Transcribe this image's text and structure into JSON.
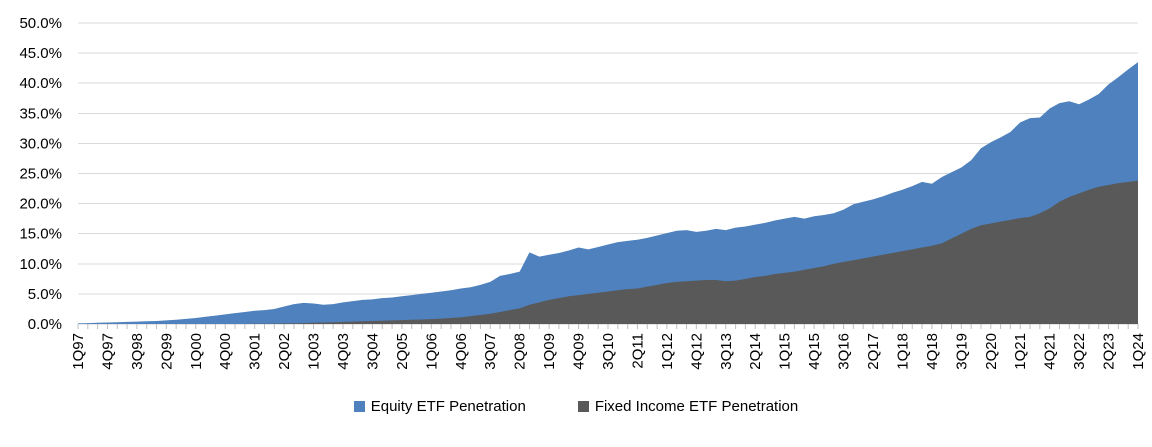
{
  "chart_data": {
    "type": "area",
    "title": "",
    "xlabel": "",
    "ylabel": "",
    "ylim": [
      0,
      50
    ],
    "y_tick_step": 5,
    "y_tick_labels": [
      "0.0%",
      "5.0%",
      "10.0%",
      "15.0%",
      "20.0%",
      "25.0%",
      "30.0%",
      "35.0%",
      "40.0%",
      "45.0%",
      "50.0%"
    ],
    "x_points": 109,
    "x_label_every": 3,
    "x_tick_labels": [
      "1Q97",
      "4Q97",
      "3Q98",
      "2Q99",
      "1Q00",
      "4Q00",
      "3Q01",
      "2Q02",
      "1Q03",
      "4Q03",
      "3Q04",
      "2Q05",
      "1Q06",
      "4Q06",
      "3Q07",
      "2Q08",
      "1Q09",
      "4Q09",
      "3Q10",
      "2Q11",
      "1Q12",
      "4Q12",
      "3Q13",
      "2Q14",
      "1Q15",
      "4Q15",
      "3Q16",
      "2Q17",
      "1Q18",
      "4Q18",
      "3Q19",
      "2Q20",
      "1Q21",
      "4Q21",
      "3Q22",
      "2Q23",
      "1Q24"
    ],
    "grid": true,
    "legend_position": "bottom",
    "series": [
      {
        "name": "Equity ETF Penetration",
        "color": "#4E81BD",
        "values": [
          0.1,
          0.15,
          0.2,
          0.25,
          0.3,
          0.35,
          0.4,
          0.45,
          0.5,
          0.6,
          0.7,
          0.85,
          1.0,
          1.2,
          1.4,
          1.6,
          1.8,
          2.0,
          2.2,
          2.3,
          2.5,
          2.9,
          3.3,
          3.5,
          3.4,
          3.2,
          3.3,
          3.6,
          3.8,
          4.0,
          4.1,
          4.3,
          4.4,
          4.6,
          4.8,
          5.0,
          5.2,
          5.4,
          5.6,
          5.9,
          6.1,
          6.5,
          7.0,
          8.0,
          8.3,
          8.7,
          11.9,
          11.2,
          11.5,
          11.8,
          12.2,
          12.7,
          12.4,
          12.8,
          13.2,
          13.6,
          13.8,
          14.0,
          14.3,
          14.7,
          15.1,
          15.5,
          15.6,
          15.3,
          15.5,
          15.8,
          15.6,
          16.0,
          16.2,
          16.5,
          16.8,
          17.2,
          17.5,
          17.8,
          17.5,
          17.9,
          18.1,
          18.4,
          19.0,
          19.9,
          20.3,
          20.7,
          21.2,
          21.8,
          22.3,
          22.9,
          23.6,
          23.3,
          24.4,
          25.2,
          26.0,
          27.2,
          29.2,
          30.2,
          31.0,
          31.9,
          33.5,
          34.2,
          34.3,
          35.8,
          36.7,
          37.0,
          36.5,
          37.3,
          38.2,
          39.8,
          41.0,
          42.3,
          43.5
        ]
      },
      {
        "name": "Fixed Income ETF Penetration",
        "color": "#595959",
        "values": [
          0,
          0,
          0,
          0,
          0,
          0,
          0,
          0,
          0,
          0,
          0,
          0,
          0,
          0,
          0,
          0,
          0,
          0,
          0.05,
          0.05,
          0.05,
          0.1,
          0.1,
          0.15,
          0.2,
          0.25,
          0.3,
          0.35,
          0.4,
          0.45,
          0.5,
          0.55,
          0.6,
          0.65,
          0.7,
          0.75,
          0.8,
          0.9,
          1.0,
          1.1,
          1.3,
          1.5,
          1.7,
          2.0,
          2.3,
          2.6,
          3.2,
          3.6,
          4.0,
          4.3,
          4.6,
          4.8,
          5.0,
          5.2,
          5.4,
          5.6,
          5.8,
          5.9,
          6.2,
          6.5,
          6.8,
          7.0,
          7.1,
          7.2,
          7.3,
          7.3,
          7.1,
          7.2,
          7.5,
          7.8,
          8.0,
          8.3,
          8.5,
          8.7,
          9.0,
          9.3,
          9.6,
          10.0,
          10.3,
          10.6,
          10.9,
          11.2,
          11.5,
          11.8,
          12.1,
          12.4,
          12.7,
          13.0,
          13.4,
          14.2,
          15.0,
          15.8,
          16.4,
          16.7,
          17.0,
          17.3,
          17.6,
          17.8,
          18.4,
          19.2,
          20.3,
          21.1,
          21.7,
          22.3,
          22.8,
          23.1,
          23.4,
          23.6,
          23.8
        ]
      }
    ],
    "colors": {
      "gridline": "#D9D9D9",
      "axis": "#D0CECE",
      "tick": "#BFBFBF",
      "text": "#000000",
      "background": "#FFFFFF"
    }
  }
}
